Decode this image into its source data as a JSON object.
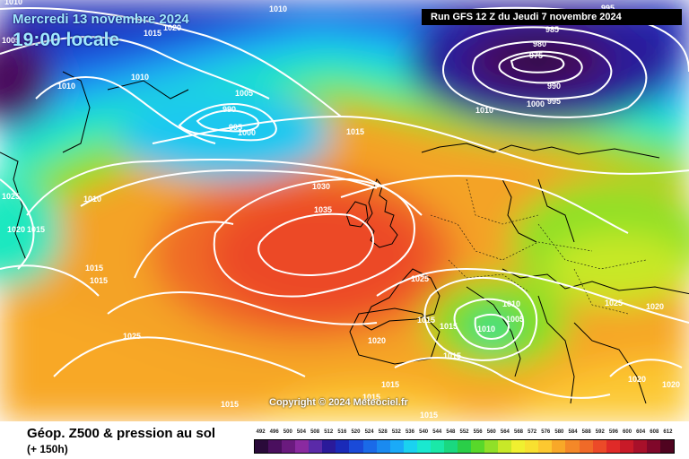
{
  "header": {
    "date": "Mercredi 13 novembre 2024",
    "time": "19:00 locale",
    "run": "Run GFS 12 Z du Jeudi 7 novembre 2024"
  },
  "copyright": "Copyright © 2024 Meteociel.fr",
  "footer": {
    "title": "Géop. Z500 & pression au sol",
    "lead_time": "(+ 150h)"
  },
  "legend": {
    "values": [
      "492",
      "496",
      "500",
      "504",
      "508",
      "512",
      "516",
      "520",
      "524",
      "528",
      "532",
      "536",
      "540",
      "544",
      "548",
      "552",
      "556",
      "560",
      "564",
      "568",
      "572",
      "576",
      "580",
      "584",
      "588",
      "592",
      "596",
      "600",
      "604",
      "608",
      "612"
    ],
    "colors": [
      "#2a0a3a",
      "#4a0f5e",
      "#6a1a7e",
      "#8a2aa0",
      "#5a2aa8",
      "#2a1a9a",
      "#1a2ab8",
      "#1a4ad8",
      "#1a6ae8",
      "#1a8af0",
      "#1aaaf8",
      "#1ad2f0",
      "#1ae8d0",
      "#1ae8a8",
      "#1ad880",
      "#2ace48",
      "#58d82a",
      "#90e028",
      "#c8e828",
      "#f0f030",
      "#f8e030",
      "#fcc830",
      "#f8a828",
      "#f48828",
      "#f06a28",
      "#ec4a28",
      "#e02a28",
      "#c81a28",
      "#a8102a",
      "#80082a",
      "#500420"
    ]
  },
  "isobars": {
    "labels": [
      "1010",
      "1015",
      "1020",
      "1005",
      "1010",
      "1010",
      "985",
      "980",
      "975",
      "990",
      "995",
      "995",
      "1005",
      "990",
      "995",
      "1000",
      "1010",
      "1015",
      "1010",
      "1025",
      "1010",
      "1020",
      "1015",
      "1015",
      "1015",
      "1030",
      "1035",
      "1025",
      "1025",
      "1015",
      "1020",
      "1010",
      "1010",
      "1005",
      "1000",
      "1015",
      "1015",
      "1015",
      "1025",
      "1020",
      "1020",
      "1020",
      "1015",
      "1015",
      "1015"
    ]
  }
}
